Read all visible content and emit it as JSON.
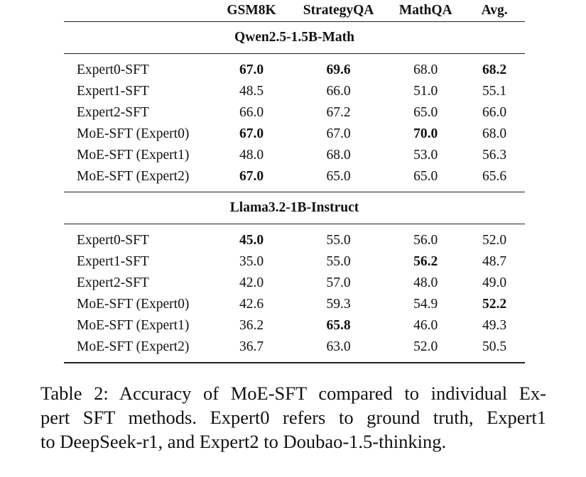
{
  "table": {
    "columns": [
      "",
      "GSM8K",
      "StrategyQA",
      "MathQA",
      "Avg."
    ],
    "groups": [
      {
        "model": "Qwen2.5-1.5B-Math",
        "rows": [
          {
            "method": "Expert0-SFT",
            "values": [
              "67.0",
              "69.6",
              "68.0",
              "68.2"
            ],
            "bold": [
              true,
              true,
              false,
              true
            ]
          },
          {
            "method": "Expert1-SFT",
            "values": [
              "48.5",
              "66.0",
              "51.0",
              "55.1"
            ],
            "bold": [
              false,
              false,
              false,
              false
            ]
          },
          {
            "method": "Expert2-SFT",
            "values": [
              "66.0",
              "67.2",
              "65.0",
              "66.0"
            ],
            "bold": [
              false,
              false,
              false,
              false
            ]
          },
          {
            "method": "MoE-SFT (Expert0)",
            "values": [
              "67.0",
              "67.0",
              "70.0",
              "68.0"
            ],
            "bold": [
              true,
              false,
              true,
              false
            ]
          },
          {
            "method": "MoE-SFT (Expert1)",
            "values": [
              "48.0",
              "68.0",
              "53.0",
              "56.3"
            ],
            "bold": [
              false,
              false,
              false,
              false
            ]
          },
          {
            "method": "MoE-SFT (Expert2)",
            "values": [
              "67.0",
              "65.0",
              "65.0",
              "65.6"
            ],
            "bold": [
              true,
              false,
              false,
              false
            ]
          }
        ]
      },
      {
        "model": "Llama3.2-1B-Instruct",
        "rows": [
          {
            "method": "Expert0-SFT",
            "values": [
              "45.0",
              "55.0",
              "56.0",
              "52.0"
            ],
            "bold": [
              true,
              false,
              false,
              false
            ]
          },
          {
            "method": "Expert1-SFT",
            "values": [
              "35.0",
              "55.0",
              "56.2",
              "48.7"
            ],
            "bold": [
              false,
              false,
              true,
              false
            ]
          },
          {
            "method": "Expert2-SFT",
            "values": [
              "42.0",
              "57.0",
              "48.0",
              "49.0"
            ],
            "bold": [
              false,
              false,
              false,
              false
            ]
          },
          {
            "method": "MoE-SFT (Expert0)",
            "values": [
              "42.6",
              "59.3",
              "54.9",
              "52.2"
            ],
            "bold": [
              false,
              false,
              false,
              true
            ]
          },
          {
            "method": "MoE-SFT (Expert1)",
            "values": [
              "36.2",
              "65.8",
              "46.0",
              "49.3"
            ],
            "bold": [
              false,
              true,
              false,
              false
            ]
          },
          {
            "method": "MoE-SFT (Expert2)",
            "values": [
              "36.7",
              "63.0",
              "52.0",
              "50.5"
            ],
            "bold": [
              false,
              false,
              false,
              false
            ]
          }
        ]
      }
    ]
  },
  "caption": {
    "lines": [
      "Table 2: Accuracy of MoE-SFT compared to individual Ex-",
      "pert SFT methods. Expert0 refers to ground truth, Expert1",
      "to DeepSeek-r1, and Expert2 to Doubao-1.5-thinking."
    ]
  }
}
